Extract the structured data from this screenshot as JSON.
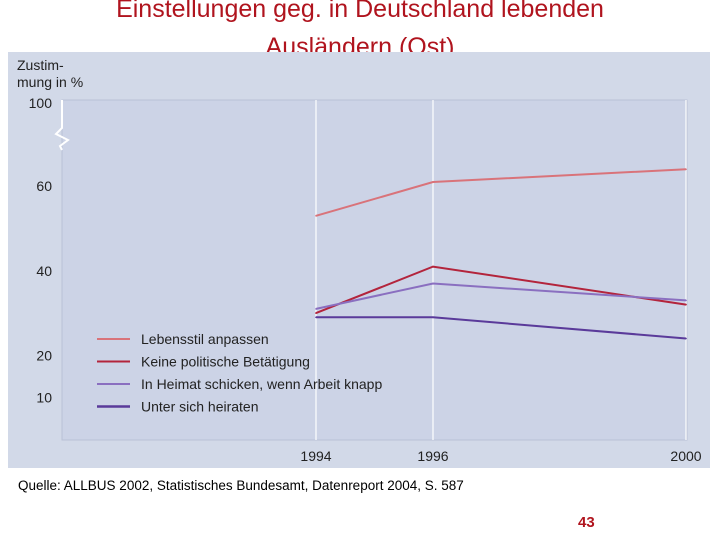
{
  "title": {
    "line1": "Einstellungen geg. in Deutschland lebenden",
    "line2": "Ausländern (Ost)"
  },
  "source": "Quelle: ALLBUS 2002, Statistisches Bundesamt, Datenreport 2004, S. 587",
  "page_number": "43",
  "chart_data": {
    "type": "line",
    "ylabel_line1": "Zustim-",
    "ylabel_line2": "mung in %",
    "x": [
      1994,
      1996,
      2000
    ],
    "x_tick_labels": [
      "1994",
      "1996",
      "2000"
    ],
    "y_ticks": [
      10,
      20,
      40,
      60,
      100
    ],
    "y_tick_labels": [
      "10",
      "20",
      "40",
      "60",
      "100"
    ],
    "axis_break": "between 60 and 100",
    "ylim": [
      0,
      100
    ],
    "grid": "vertical lines at x ticks",
    "legend_position": "bottom-left",
    "series": [
      {
        "name": "Lebensstil anpassen",
        "values": [
          53,
          61,
          64
        ],
        "color": "#d9737a"
      },
      {
        "name": "Keine politische Betätigung",
        "values": [
          30,
          41,
          32
        ],
        "color": "#b3243c"
      },
      {
        "name": "In Heimat schicken, wenn Arbeit knapp",
        "values": [
          31,
          37,
          33
        ],
        "color": "#8a6fc0"
      },
      {
        "name": "Unter sich heiraten",
        "values": [
          29,
          29,
          24
        ],
        "color": "#5a3a9a"
      }
    ]
  }
}
